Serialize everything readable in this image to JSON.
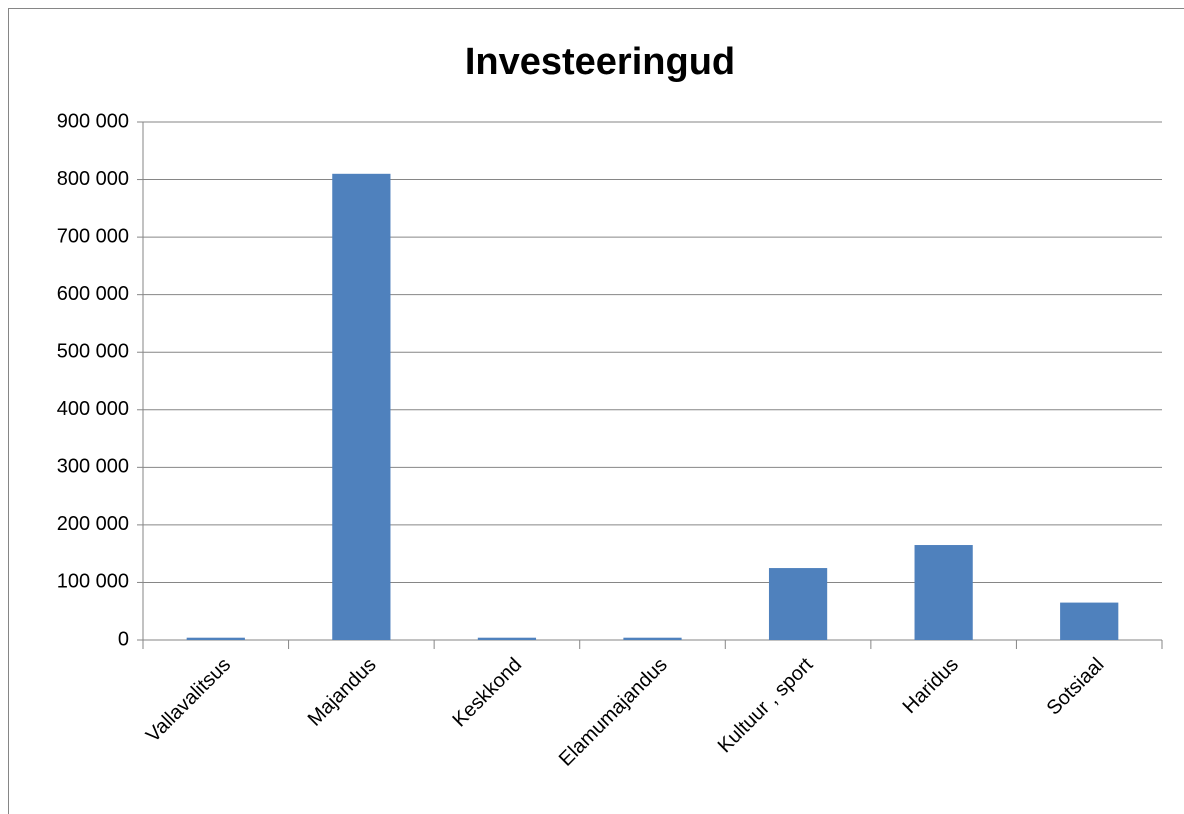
{
  "chart_data": {
    "type": "bar",
    "title": "Investeeringud",
    "categories": [
      "Vallavalitsus",
      "Majandus",
      "Keskkond",
      "Elamumajandus",
      "Kultuur , sport",
      "Haridus",
      "Sotsiaal"
    ],
    "values": [
      4000,
      810000,
      4000,
      4000,
      125000,
      165000,
      65000
    ],
    "color": "#4f81bd",
    "ylim": [
      0,
      900000
    ],
    "yticks": [
      0,
      {
        "value": 100000,
        "label": "100 000"
      },
      {
        "value": 200000,
        "label": "200 000"
      },
      {
        "value": 300000,
        "label": "300 000"
      },
      {
        "value": 400000,
        "label": "400 000"
      },
      {
        "value": 500000,
        "label": "500 000"
      },
      {
        "value": 600000,
        "label": "600 000"
      },
      {
        "value": 700000,
        "label": "700 000"
      },
      {
        "value": 800000,
        "label": "800 000"
      },
      {
        "value": 900000,
        "label": "900 000"
      }
    ],
    "grid": true
  }
}
